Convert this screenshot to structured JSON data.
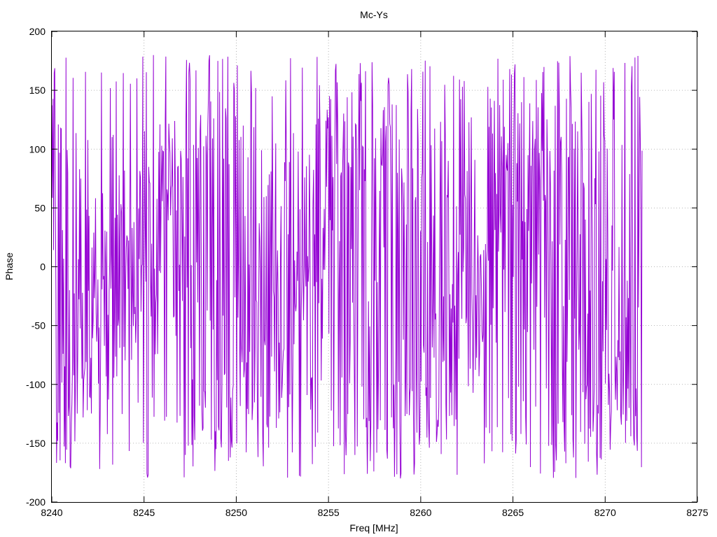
{
  "chart_data": {
    "type": "line",
    "title": "Mc-Ys",
    "xlabel": "Freq [MHz]",
    "ylabel": "Phase",
    "xlim": [
      8240,
      8275
    ],
    "ylim": [
      -200,
      200
    ],
    "xticks": [
      8240,
      8245,
      8250,
      8255,
      8260,
      8265,
      8270,
      8275
    ],
    "yticks": [
      -200,
      -150,
      -100,
      -50,
      0,
      50,
      100,
      150,
      200
    ],
    "grid": true,
    "legend": "none",
    "series": [
      {
        "color": "#9400d3",
        "x_start": 8240,
        "x_end": 8272,
        "points": 1000,
        "phase_trend": {
          "description_points_freq": [
            8240,
            8241,
            8242,
            8243,
            8244,
            8245,
            8246,
            8247,
            8248,
            8249,
            8250,
            8251,
            8252,
            8253,
            8254,
            8255,
            8256,
            8257,
            8258,
            8259,
            8260,
            8261,
            8262,
            8263,
            8264,
            8265,
            8266,
            8267,
            8268,
            8269,
            8270,
            8271,
            8272
          ],
          "description_points_phase": [
            100,
            -90,
            -60,
            -40,
            -20,
            10,
            50,
            120,
            170,
            -170,
            -150,
            -100,
            -70,
            -40,
            20,
            80,
            120,
            150,
            170,
            -170,
            -140,
            -100,
            -60,
            -20,
            10,
            60,
            110,
            140,
            170,
            -170,
            -130,
            -110,
            170
          ]
        }
      }
    ]
  }
}
